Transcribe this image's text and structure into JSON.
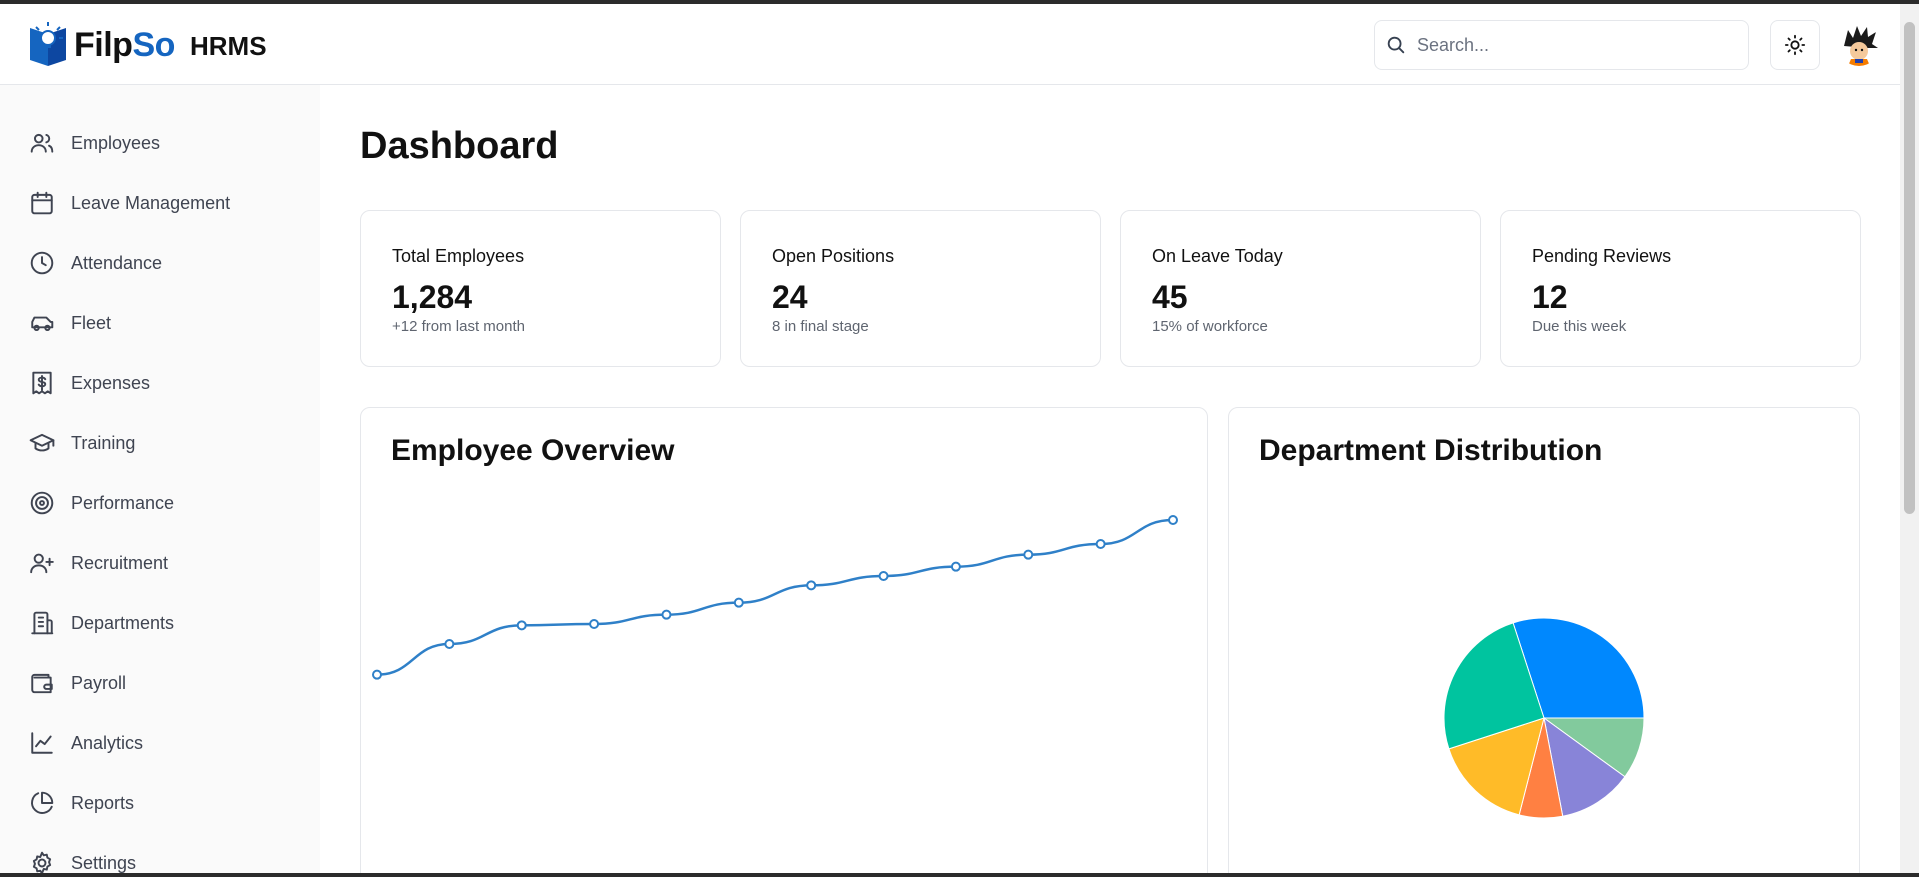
{
  "app": {
    "brand_prefix": "Filp",
    "brand_suffix": "So",
    "name": "HRMS",
    "brand_color": "#1565c0",
    "accent_color": "#2f80c8"
  },
  "header": {
    "search_placeholder": "Search...",
    "theme_toggle_icon": "sun-icon",
    "avatar": "user-avatar"
  },
  "sidebar": {
    "items": [
      {
        "label": "Employees",
        "icon": "users-icon"
      },
      {
        "label": "Leave Management",
        "icon": "calendar-icon"
      },
      {
        "label": "Attendance",
        "icon": "clock-icon"
      },
      {
        "label": "Fleet",
        "icon": "car-icon"
      },
      {
        "label": "Expenses",
        "icon": "receipt-dollar-icon"
      },
      {
        "label": "Training",
        "icon": "graduation-cap-icon"
      },
      {
        "label": "Performance",
        "icon": "target-icon"
      },
      {
        "label": "Recruitment",
        "icon": "user-plus-icon"
      },
      {
        "label": "Departments",
        "icon": "building-icon"
      },
      {
        "label": "Payroll",
        "icon": "wallet-icon"
      },
      {
        "label": "Analytics",
        "icon": "line-chart-icon"
      },
      {
        "label": "Reports",
        "icon": "pie-chart-icon"
      },
      {
        "label": "Settings",
        "icon": "gear-icon"
      }
    ]
  },
  "main": {
    "title": "Dashboard",
    "stats": [
      {
        "label": "Total Employees",
        "value": "1,284",
        "sub": "+12 from last month"
      },
      {
        "label": "Open Positions",
        "value": "24",
        "sub": "8 in final stage"
      },
      {
        "label": "On Leave Today",
        "value": "45",
        "sub": "15% of workforce"
      },
      {
        "label": "Pending Reviews",
        "value": "12",
        "sub": "Due this week"
      }
    ],
    "overview_title": "Employee Overview",
    "distribution_title": "Department Distribution"
  },
  "chart_data": [
    {
      "type": "line",
      "title": "Employee Overview",
      "x": [
        1,
        2,
        3,
        4,
        5,
        6,
        7,
        8,
        9,
        10,
        11,
        12
      ],
      "series": [
        {
          "values": [
            1160,
            1183,
            1197,
            1198,
            1205,
            1214,
            1227,
            1234,
            1241,
            1250,
            1258,
            1276
          ],
          "color": "#2f80c8"
        }
      ],
      "ylim": [
        1000,
        1300
      ],
      "grid": false
    },
    {
      "type": "pie",
      "title": "Department Distribution",
      "slices": [
        {
          "value": 30,
          "color": "#0088fe"
        },
        {
          "value": 10,
          "color": "#82ca9d"
        },
        {
          "value": 12,
          "color": "#8884d8"
        },
        {
          "value": 7,
          "color": "#ff8042"
        },
        {
          "value": 16,
          "color": "#ffbb28"
        },
        {
          "value": 25,
          "color": "#00c49f"
        }
      ]
    }
  ]
}
